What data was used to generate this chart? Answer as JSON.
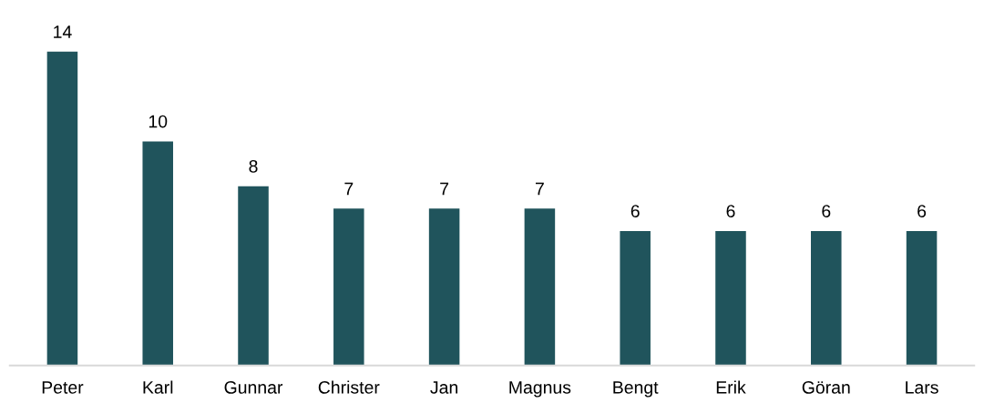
{
  "chart_data": {
    "type": "bar",
    "categories": [
      "Peter",
      "Karl",
      "Gunnar",
      "Christer",
      "Jan",
      "Magnus",
      "Bengt",
      "Erik",
      "Göran",
      "Lars"
    ],
    "values": [
      14,
      10,
      8,
      7,
      7,
      7,
      6,
      6,
      6,
      6
    ],
    "color": "#20545c",
    "data_labels": true,
    "grid": false,
    "legend": false
  }
}
